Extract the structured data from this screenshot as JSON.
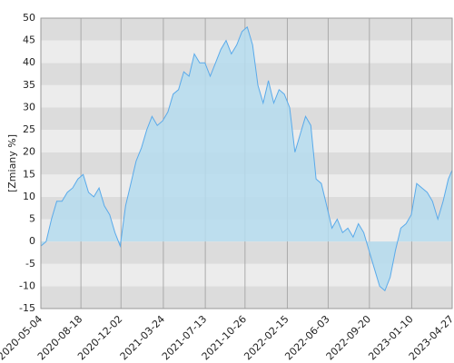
{
  "chart_data": {
    "type": "area",
    "y_label": "[Zmiany %]",
    "color": "#5aaaea",
    "fill": "#b5dcee",
    "x": [
      "2020-05-04",
      "2020-05-18",
      "2020-06-01",
      "2020-06-15",
      "2020-06-29",
      "2020-07-13",
      "2020-07-27",
      "2020-08-10",
      "2020-08-24",
      "2020-09-07",
      "2020-09-21",
      "2020-10-05",
      "2020-10-19",
      "2020-11-02",
      "2020-11-16",
      "2020-11-30",
      "2020-12-14",
      "2020-12-28",
      "2021-01-11",
      "2021-01-25",
      "2021-02-08",
      "2021-02-22",
      "2021-03-08",
      "2021-03-22",
      "2021-04-05",
      "2021-04-19",
      "2021-05-03",
      "2021-05-17",
      "2021-05-31",
      "2021-06-14",
      "2021-06-28",
      "2021-07-12",
      "2021-07-26",
      "2021-08-09",
      "2021-08-23",
      "2021-09-06",
      "2021-09-20",
      "2021-10-04",
      "2021-10-18",
      "2021-11-01",
      "2021-11-15",
      "2021-11-29",
      "2021-12-13",
      "2021-12-27",
      "2022-01-10",
      "2022-01-24",
      "2022-02-07",
      "2022-02-21",
      "2022-03-07",
      "2022-03-21",
      "2022-04-04",
      "2022-04-18",
      "2022-05-02",
      "2022-05-16",
      "2022-05-30",
      "2022-06-13",
      "2022-06-27",
      "2022-07-11",
      "2022-07-25",
      "2022-08-08",
      "2022-08-22",
      "2022-09-05",
      "2022-09-19",
      "2022-10-03",
      "2022-10-17",
      "2022-10-31",
      "2022-11-14",
      "2022-11-28",
      "2022-12-12",
      "2022-12-26",
      "2023-01-09",
      "2023-01-23",
      "2023-02-06",
      "2023-02-20",
      "2023-03-06",
      "2023-03-20",
      "2023-04-03",
      "2023-04-17",
      "2023-04-27"
    ],
    "values": [
      -1,
      0,
      5,
      9,
      9,
      11,
      12,
      14,
      15,
      11,
      10,
      12,
      8,
      6,
      2,
      -1,
      8,
      13,
      18,
      21,
      25,
      28,
      26,
      27,
      29,
      33,
      34,
      38,
      37,
      42,
      40,
      40,
      37,
      40,
      43,
      45,
      42,
      44,
      47,
      48,
      44,
      35,
      31,
      36,
      31,
      34,
      33,
      30,
      20,
      24,
      28,
      26,
      14,
      13,
      8,
      3,
      5,
      2,
      3,
      1,
      4,
      2,
      -2,
      -6,
      -10,
      -11,
      -8,
      -2,
      3,
      4,
      6,
      13,
      12,
      11,
      9,
      5,
      9,
      14,
      16
    ],
    "xlim": [
      "2020-05-04",
      "2023-04-27"
    ],
    "xticks": [
      "2020-05-04",
      "2020-08-18",
      "2020-12-02",
      "2021-03-24",
      "2021-07-13",
      "2021-10-26",
      "2022-02-15",
      "2022-06-03",
      "2022-09-20",
      "2023-01-10",
      "2023-04-27"
    ],
    "ylim": [
      -15,
      50
    ],
    "yticks": [
      -15,
      -10,
      -5,
      0,
      5,
      10,
      15,
      20,
      25,
      30,
      35,
      40,
      45,
      50
    ],
    "grid": true
  }
}
